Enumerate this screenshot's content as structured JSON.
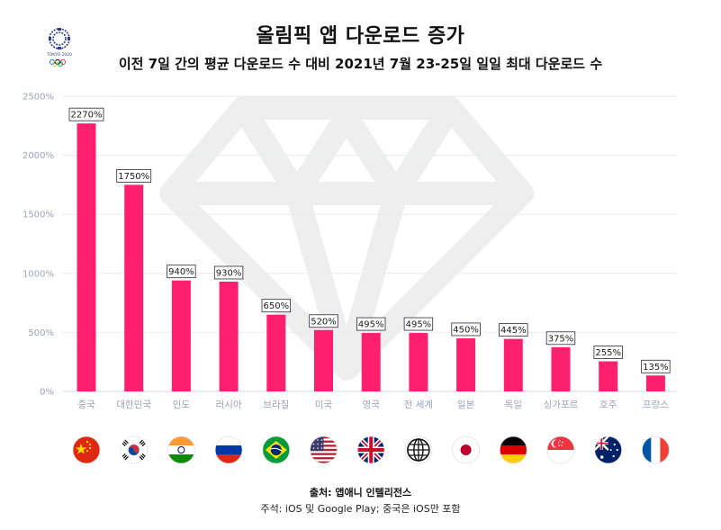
{
  "header": {
    "title": "올림픽 앱 다운로드 증가",
    "subtitle": "이전 7일 간의 평균 다운로드 수 대비 2021년 7월 23-25일 일일 최대 다운로드 수",
    "logo_text": "TOKYO 2020"
  },
  "footer": {
    "source": "출처: 앱애니 인텔리전스",
    "note": "주석: iOS 및 Google Play; 중국은 iOS만 포함"
  },
  "colors": {
    "bar": "#ff1f6f",
    "grid": "#e8ebf2",
    "watermark": "#eeeeee"
  },
  "flags": [
    "china-flag-icon",
    "south-korea-flag-icon",
    "india-flag-icon",
    "russia-flag-icon",
    "brazil-flag-icon",
    "usa-flag-icon",
    "uk-flag-icon",
    "globe-icon",
    "japan-flag-icon",
    "germany-flag-icon",
    "singapore-flag-icon",
    "australia-flag-icon",
    "france-flag-icon"
  ],
  "chart_data": {
    "type": "bar",
    "categories": [
      "중국",
      "대한민국",
      "인도",
      "러시아",
      "브라질",
      "미국",
      "영국",
      "전 세계",
      "일본",
      "독일",
      "싱가포르",
      "호주",
      "프랑스"
    ],
    "values": [
      2270,
      1750,
      940,
      930,
      650,
      520,
      495,
      495,
      450,
      445,
      375,
      255,
      135
    ],
    "data_labels": [
      "2270%",
      "1750%",
      "940%",
      "930%",
      "650%",
      "520%",
      "495%",
      "495%",
      "450%",
      "445%",
      "375%",
      "255%",
      "135%"
    ],
    "yticks": [
      "0%",
      "500%",
      "1000%",
      "1500%",
      "2000%",
      "2500%"
    ],
    "ylim": [
      0,
      2500
    ],
    "grid": true
  }
}
